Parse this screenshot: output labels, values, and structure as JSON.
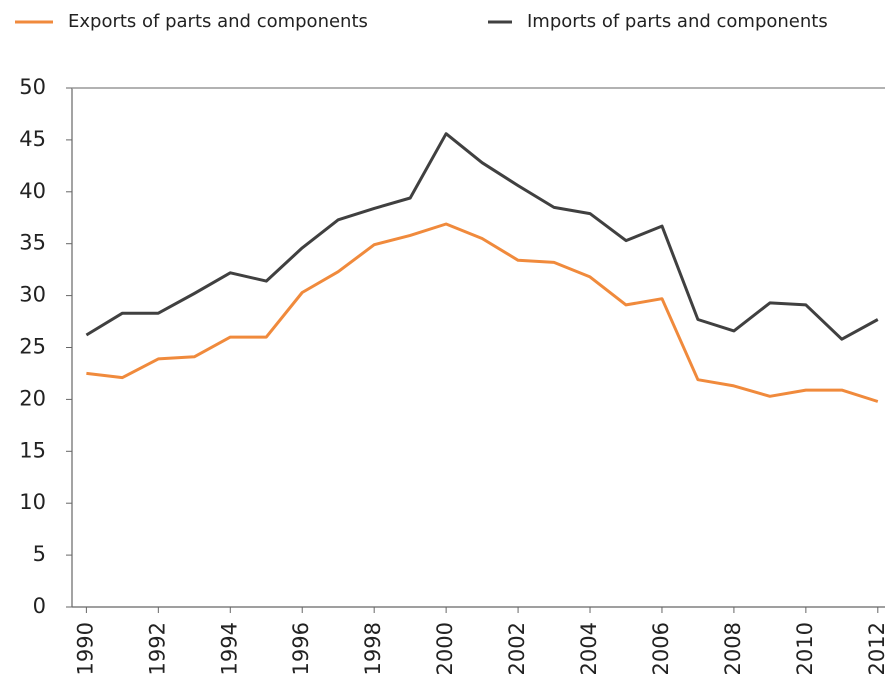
{
  "chart_data": {
    "type": "line",
    "x": [
      1990,
      1991,
      1992,
      1993,
      1994,
      1995,
      1996,
      1997,
      1998,
      1999,
      2000,
      2001,
      2002,
      2003,
      2004,
      2005,
      2006,
      2007,
      2008,
      2009,
      2010,
      2011,
      2012
    ],
    "series": [
      {
        "name": "Exports of parts and components",
        "color": "#f08a3c",
        "values": [
          22.5,
          22.1,
          23.9,
          24.1,
          26.0,
          26.0,
          30.3,
          32.3,
          34.9,
          35.8,
          36.9,
          35.5,
          33.4,
          33.2,
          31.8,
          29.1,
          29.7,
          21.9,
          21.3,
          20.3,
          20.9,
          20.9,
          19.8
        ]
      },
      {
        "name": "Imports of parts and components",
        "color": "#404040",
        "values": [
          26.2,
          28.3,
          28.3,
          30.2,
          32.2,
          31.4,
          34.6,
          37.3,
          38.4,
          39.4,
          45.6,
          42.8,
          40.6,
          38.5,
          37.9,
          35.3,
          36.7,
          27.7,
          26.6,
          29.3,
          29.1,
          25.8,
          27.7
        ]
      }
    ],
    "xlim": [
      1989.6,
      2012.2
    ],
    "xticks": [
      1990,
      1992,
      1994,
      1996,
      1998,
      2000,
      2002,
      2004,
      2006,
      2008,
      2010,
      2012
    ],
    "ylim": [
      0,
      50
    ],
    "yticks": [
      0,
      5,
      10,
      15,
      20,
      25,
      30,
      35,
      40,
      45,
      50
    ],
    "grid": false,
    "legend": "top"
  }
}
